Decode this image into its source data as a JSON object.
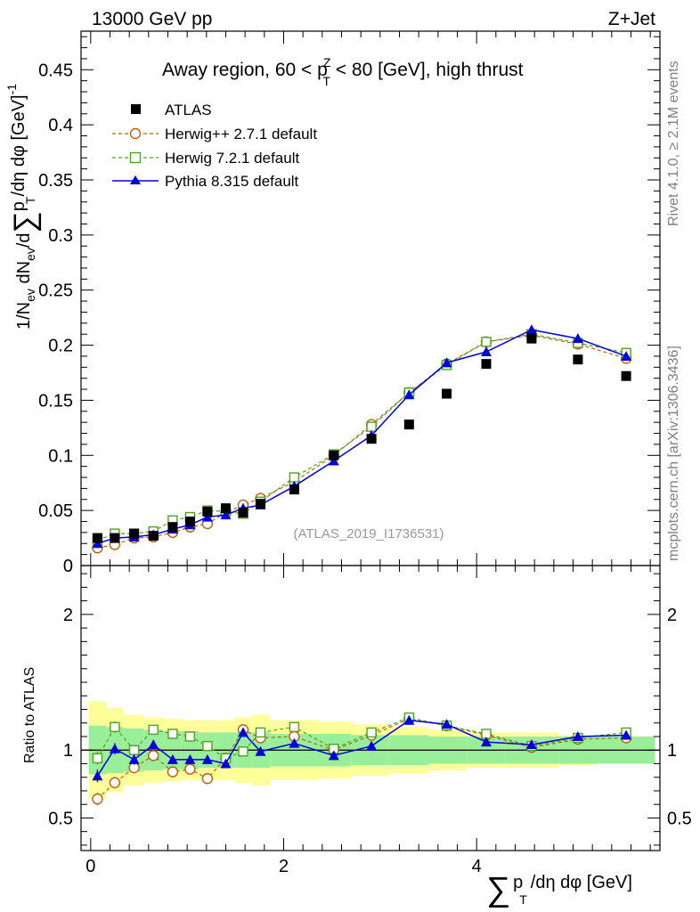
{
  "header": {
    "left_label": "13000 GeV pp",
    "right_label": "Z+Jet"
  },
  "side_labels": {
    "rivet": "Rivet 4.1.0, ≥ 2.1M events",
    "mcplots": "mcplots.cern.ch [arXiv:1306.3436]"
  },
  "chart_data": {
    "type": "scatter",
    "title": "Away region, 60 < p_T^Z < 80 [GeV], high thrust",
    "title_parts": {
      "pre": "Away region, 60 < p",
      "sup": "Z",
      "sub": "T",
      "post": " < 80 [GeV], high thrust"
    },
    "analysis_id": "(ATLAS_2019_I1736531)",
    "xlabel": "∑ p_T/dη dφ [GeV]",
    "xlabel_parts": {
      "sum": "∑",
      "p": "p",
      "sub": "T",
      "post": "/dη dφ [GeV]"
    },
    "ylabel": "1/N_ev dN_ev/d∑p_T/dη dφ [GeV]^-1",
    "ylabel_parts": {
      "a": "1/N",
      "a_sub": "ev",
      "b": " dN",
      "b_sub": "ev",
      "c": "/d",
      "sum": "∑",
      "d": "p",
      "d_sub": "T",
      "e": "/dη dφ  [GeV]",
      "sup": "-1"
    },
    "ratio_ylabel": "Ratio to ATLAS",
    "xlim": [
      -0.1,
      5.9
    ],
    "ylim": [
      0,
      0.485
    ],
    "ratio_ylim": [
      0.26,
      2.36
    ],
    "x_ticks": [
      0,
      2,
      4
    ],
    "x_tick_labels": [
      "0",
      "2",
      "4"
    ],
    "y_ticks": [
      0,
      0.05,
      0.1,
      0.15,
      0.2,
      0.25,
      0.3,
      0.35,
      0.4,
      0.45
    ],
    "y_tick_labels": [
      "0",
      "0.05",
      "0.1",
      "0.15",
      "0.2",
      "0.25",
      "0.3",
      "0.35",
      "0.4",
      "0.45"
    ],
    "ratio_ticks": [
      0.5,
      1,
      2
    ],
    "ratio_tick_labels": [
      "0.5",
      "1",
      "2"
    ],
    "x": [
      0.07,
      0.25,
      0.45,
      0.65,
      0.85,
      1.03,
      1.21,
      1.4,
      1.58,
      1.76,
      2.11,
      2.52,
      2.91,
      3.3,
      3.69,
      4.1,
      4.57,
      5.05,
      5.55
    ],
    "bin_edges": [
      -0.02,
      0.16,
      0.34,
      0.55,
      0.75,
      0.94,
      1.12,
      1.3,
      1.49,
      1.67,
      1.86,
      2.36,
      2.7,
      3.1,
      3.5,
      3.9,
      4.3,
      4.85,
      5.25,
      5.85
    ],
    "band_inner": [
      0.18,
      0.17,
      0.16,
      0.15,
      0.14,
      0.14,
      0.13,
      0.13,
      0.13,
      0.13,
      0.12,
      0.12,
      0.11,
      0.11,
      0.1,
      0.1,
      0.1,
      0.1,
      0.1
    ],
    "band_outer": [
      0.36,
      0.31,
      0.26,
      0.24,
      0.23,
      0.22,
      0.22,
      0.22,
      0.24,
      0.26,
      0.22,
      0.21,
      0.19,
      0.17,
      0.15,
      0.13,
      0.13,
      0.11,
      0.09
    ],
    "series": [
      {
        "name": "ATLAS",
        "marker": "square-filled",
        "color": "#000000",
        "values": [
          0.025,
          0.025,
          0.029,
          0.027,
          0.035,
          0.04,
          0.049,
          0.052,
          0.048,
          0.056,
          0.069,
          0.1,
          0.115,
          0.128,
          0.156,
          0.183,
          0.206,
          0.187,
          0.172
        ]
      },
      {
        "name": "Herwig++ 2.7.1 default",
        "marker": "circle-open",
        "color": "#b8620c",
        "line": "dashed",
        "values": [
          0.016,
          0.019,
          0.025,
          0.026,
          0.03,
          0.035,
          0.038,
          0.048,
          0.055,
          0.061,
          0.076,
          0.1,
          0.128,
          0.157,
          0.183,
          0.203,
          0.209,
          0.201,
          0.188
        ],
        "ratio": [
          0.64,
          0.76,
          0.87,
          0.96,
          0.84,
          0.86,
          0.79,
          0.94,
          1.15,
          1.09,
          1.1,
          1.0,
          1.11,
          1.23,
          1.18,
          1.11,
          1.02,
          1.08,
          1.09
        ]
      },
      {
        "name": "Herwig 7.2.1 default",
        "marker": "square-open",
        "color": "#4ca31d",
        "line": "dashed",
        "values": [
          0.023,
          0.029,
          0.029,
          0.031,
          0.041,
          0.044,
          0.05,
          0.049,
          0.047,
          0.058,
          0.08,
          0.101,
          0.126,
          0.157,
          0.182,
          0.203,
          0.21,
          0.202,
          0.193
        ],
        "ratio": [
          0.94,
          1.17,
          1.0,
          1.15,
          1.12,
          1.1,
          1.03,
          0.94,
          0.99,
          1.13,
          1.17,
          1.01,
          1.13,
          1.24,
          1.18,
          1.12,
          1.03,
          1.09,
          1.13
        ]
      },
      {
        "name": "Pythia 8.315 default",
        "marker": "triangle-filled",
        "color": "#0000dd",
        "line": "solid",
        "values": [
          0.02,
          0.025,
          0.026,
          0.028,
          0.033,
          0.037,
          0.044,
          0.046,
          0.052,
          0.055,
          0.072,
          0.095,
          0.118,
          0.155,
          0.184,
          0.194,
          0.214,
          0.206,
          0.19
        ],
        "ratio": [
          0.81,
          1.01,
          0.93,
          1.04,
          0.93,
          0.93,
          0.93,
          0.9,
          1.13,
          0.99,
          1.05,
          0.96,
          1.03,
          1.22,
          1.19,
          1.06,
          1.04,
          1.1,
          1.11
        ]
      }
    ]
  }
}
